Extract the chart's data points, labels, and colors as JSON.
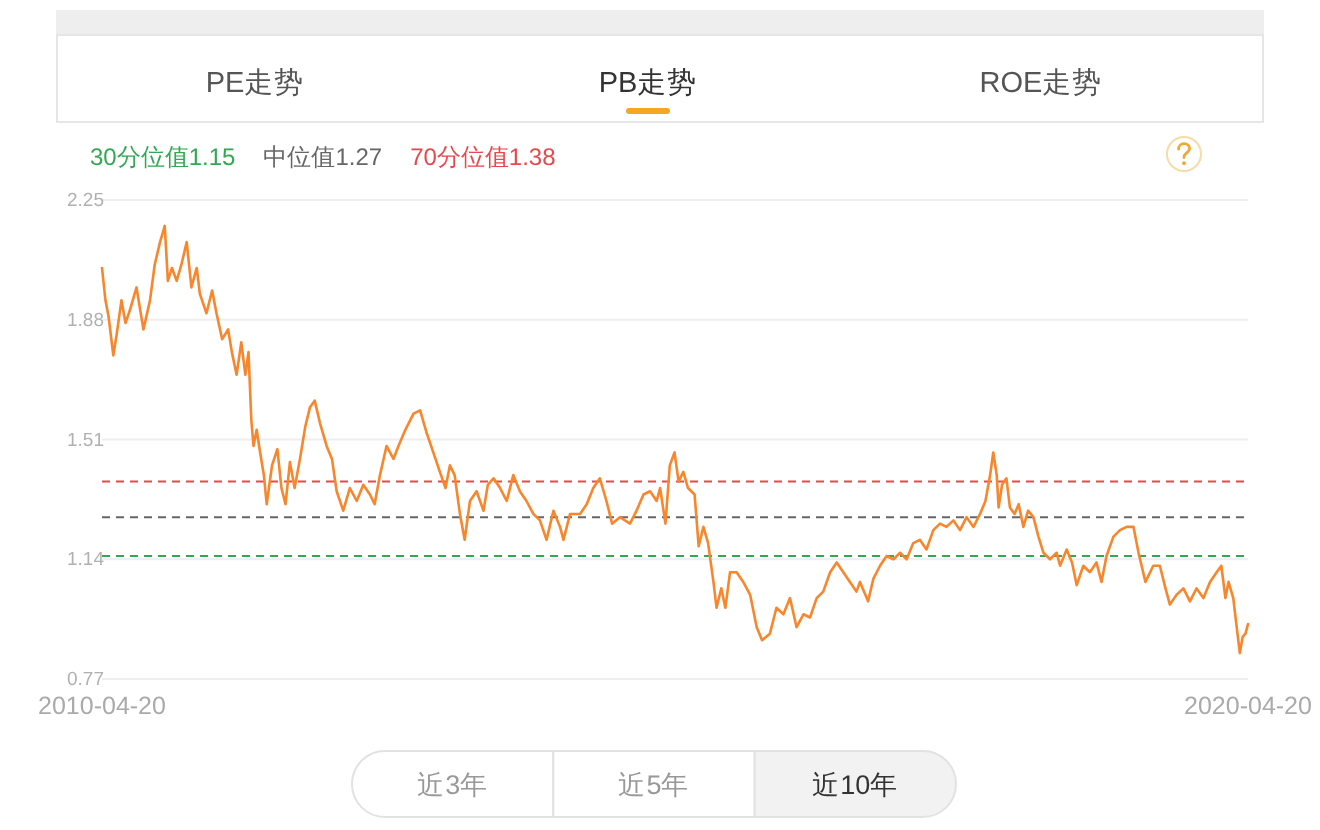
{
  "chart_data": [
    {
      "type": "other",
      "annotations": [
        "PE走势",
        "PB走势",
        "ROE走势"
      ]
    },
    {
      "type": "line",
      "x": [
        "2010-04-20",
        "2010-05-01",
        "2010-05-11",
        "2010-05-26",
        "2010-06-05",
        "2010-06-21",
        "2010-07-04",
        "2010-07-18",
        "2010-08-08",
        "2010-08-30",
        "2010-09-20",
        "2010-10-05",
        "2010-10-22",
        "2010-11-06",
        "2010-11-16",
        "2010-11-29",
        "2010-12-14",
        "2010-12-29",
        "2011-01-15",
        "2011-01-30",
        "2011-02-16",
        "2011-02-26",
        "2011-03-19",
        "2011-04-06",
        "2011-04-20",
        "2011-05-08",
        "2011-05-27",
        "2011-06-08",
        "2011-06-23",
        "2011-07-08",
        "2011-07-21",
        "2011-07-31",
        "2011-08-09",
        "2011-08-16",
        "2011-08-26",
        "2011-09-06",
        "2011-09-18",
        "2011-09-27",
        "2011-10-14",
        "2011-10-31",
        "2011-11-13",
        "2011-11-26",
        "2011-12-10",
        "2011-12-25",
        "2012-01-11",
        "2012-01-28",
        "2012-02-12",
        "2012-02-27",
        "2012-03-15",
        "2012-04-05",
        "2012-04-22",
        "2012-05-07",
        "2012-05-28",
        "2012-06-18",
        "2012-07-10",
        "2012-07-31",
        "2012-08-21",
        "2012-09-05",
        "2012-09-22",
        "2012-10-13",
        "2012-11-04",
        "2012-11-20",
        "2012-12-12",
        "2013-01-07",
        "2013-01-28",
        "2013-02-18",
        "2013-03-11",
        "2013-04-01",
        "2013-04-19",
        "2013-05-03",
        "2013-05-18",
        "2013-06-04",
        "2013-06-19",
        "2013-07-06",
        "2013-07-27",
        "2013-08-18",
        "2013-09-01",
        "2013-09-19",
        "2013-10-10",
        "2013-10-31",
        "2013-11-21",
        "2013-12-12",
        "2014-01-02",
        "2014-01-24",
        "2014-02-14",
        "2014-03-07",
        "2014-03-29",
        "2014-04-19",
        "2014-04-30",
        "2014-05-21",
        "2014-06-22",
        "2014-07-13",
        "2014-08-03",
        "2014-08-24",
        "2014-09-14",
        "2014-10-02",
        "2014-10-27",
        "2014-11-28",
        "2014-12-19",
        "2015-01-10",
        "2015-01-31",
        "2015-02-21",
        "2015-03-04",
        "2015-03-21",
        "2015-04-04",
        "2015-04-19",
        "2015-05-02",
        "2015-05-17",
        "2015-06-01",
        "2015-06-22",
        "2015-07-05",
        "2015-07-20",
        "2015-08-04",
        "2015-08-21",
        "2015-08-31",
        "2015-09-15",
        "2015-09-28",
        "2015-10-13",
        "2015-11-03",
        "2015-11-24",
        "2015-12-16",
        "2016-01-06",
        "2016-01-23",
        "2016-02-17",
        "2016-03-09",
        "2016-03-31",
        "2016-04-21",
        "2016-05-12",
        "2016-06-03",
        "2016-06-24",
        "2016-07-15",
        "2016-08-05",
        "2016-08-27",
        "2016-09-17",
        "2016-10-08",
        "2016-10-29",
        "2016-11-19",
        "2016-11-30",
        "2016-12-26",
        "2017-01-12",
        "2017-02-02",
        "2017-02-23",
        "2017-03-17",
        "2017-04-07",
        "2017-04-28",
        "2017-05-19",
        "2017-06-09",
        "2017-06-30",
        "2017-07-22",
        "2017-08-12",
        "2017-09-02",
        "2017-09-24",
        "2017-10-15",
        "2017-11-05",
        "2017-11-27",
        "2017-12-18",
        "2018-01-04",
        "2018-01-19",
        "2018-01-29",
        "2018-02-09",
        "2018-02-15",
        "2018-02-26",
        "2018-03-12",
        "2018-03-23",
        "2018-04-07",
        "2018-04-20",
        "2018-05-05",
        "2018-05-20",
        "2018-06-06",
        "2018-06-22",
        "2018-07-08",
        "2018-07-29",
        "2018-08-19",
        "2018-08-30",
        "2018-09-20",
        "2018-10-07",
        "2018-10-22",
        "2018-11-12",
        "2018-12-03",
        "2018-12-24",
        "2019-01-09",
        "2019-01-25",
        "2019-02-16",
        "2019-03-09",
        "2019-03-30",
        "2019-04-21",
        "2019-05-07",
        "2019-05-29",
        "2019-06-23",
        "2019-07-14",
        "2019-08-01",
        "2019-08-15",
        "2019-09-05",
        "2019-09-27",
        "2019-10-18",
        "2019-11-08",
        "2019-11-30",
        "2019-12-21",
        "2020-01-11",
        "2020-01-26",
        "2020-02-08",
        "2020-02-18",
        "2020-03-04",
        "2020-03-15",
        "2020-03-25",
        "2020-04-03",
        "2020-04-12",
        "2020-04-20"
      ],
      "series": [
        {
          "color": "#f7862d",
          "values": [
            2.04,
            1.94,
            1.89,
            1.77,
            1.83,
            1.94,
            1.87,
            1.91,
            1.98,
            1.85,
            1.94,
            2.05,
            2.12,
            2.17,
            2.0,
            2.04,
            2.0,
            2.05,
            2.12,
            1.98,
            2.04,
            1.96,
            1.9,
            1.97,
            1.9,
            1.82,
            1.85,
            1.78,
            1.71,
            1.81,
            1.71,
            1.78,
            1.57,
            1.49,
            1.54,
            1.47,
            1.4,
            1.31,
            1.43,
            1.48,
            1.36,
            1.31,
            1.44,
            1.36,
            1.45,
            1.55,
            1.61,
            1.63,
            1.56,
            1.49,
            1.45,
            1.35,
            1.29,
            1.36,
            1.32,
            1.37,
            1.34,
            1.31,
            1.4,
            1.49,
            1.45,
            1.49,
            1.54,
            1.59,
            1.6,
            1.53,
            1.47,
            1.41,
            1.36,
            1.43,
            1.4,
            1.28,
            1.2,
            1.32,
            1.35,
            1.29,
            1.37,
            1.39,
            1.36,
            1.32,
            1.4,
            1.35,
            1.32,
            1.28,
            1.26,
            1.2,
            1.29,
            1.24,
            1.2,
            1.28,
            1.28,
            1.31,
            1.36,
            1.39,
            1.32,
            1.25,
            1.27,
            1.25,
            1.29,
            1.34,
            1.35,
            1.32,
            1.36,
            1.25,
            1.43,
            1.47,
            1.38,
            1.41,
            1.36,
            1.34,
            1.18,
            1.24,
            1.19,
            1.07,
            0.99,
            1.05,
            0.99,
            1.1,
            1.1,
            1.07,
            1.03,
            0.93,
            0.89,
            0.91,
            0.99,
            0.97,
            1.02,
            0.93,
            0.97,
            0.96,
            1.02,
            1.04,
            1.1,
            1.13,
            1.1,
            1.07,
            1.04,
            1.07,
            1.01,
            1.08,
            1.12,
            1.15,
            1.14,
            1.16,
            1.14,
            1.19,
            1.2,
            1.17,
            1.23,
            1.25,
            1.24,
            1.26,
            1.23,
            1.27,
            1.24,
            1.28,
            1.32,
            1.4,
            1.47,
            1.4,
            1.3,
            1.37,
            1.39,
            1.3,
            1.28,
            1.31,
            1.24,
            1.29,
            1.27,
            1.21,
            1.16,
            1.14,
            1.16,
            1.12,
            1.17,
            1.13,
            1.06,
            1.12,
            1.1,
            1.13,
            1.07,
            1.15,
            1.21,
            1.23,
            1.24,
            1.24,
            1.16,
            1.07,
            1.12,
            1.12,
            1.05,
            1.0,
            1.03,
            1.05,
            1.01,
            1.05,
            1.02,
            1.07,
            1.1,
            1.12,
            1.02,
            1.07,
            1.02,
            0.93,
            0.85,
            0.9,
            0.91,
            0.94
          ]
        }
      ],
      "xlim": [
        "2010-04-20",
        "2020-04-20"
      ],
      "xticks": [
        "2010-04-20",
        "2020-04-20"
      ],
      "ylim": [
        0.77,
        2.25
      ],
      "yticks": [
        0.77,
        1.14,
        1.51,
        1.88,
        2.25
      ],
      "grid": "y",
      "ref_lines": [
        {
          "axis": "y",
          "value": 1.15,
          "label": "30分位值1.15",
          "color": "#33a852",
          "line_style": "dashed"
        },
        {
          "axis": "y",
          "value": 1.27,
          "label": "中位值1.27",
          "color": "#666666",
          "line_style": "dashed"
        },
        {
          "axis": "y",
          "value": 1.38,
          "label": "70分位值1.38",
          "color": "#e8474c",
          "line_style": "dashed"
        }
      ]
    },
    {
      "type": "other",
      "annotations": [
        "近3年",
        "近5年",
        "近10年"
      ]
    }
  ]
}
